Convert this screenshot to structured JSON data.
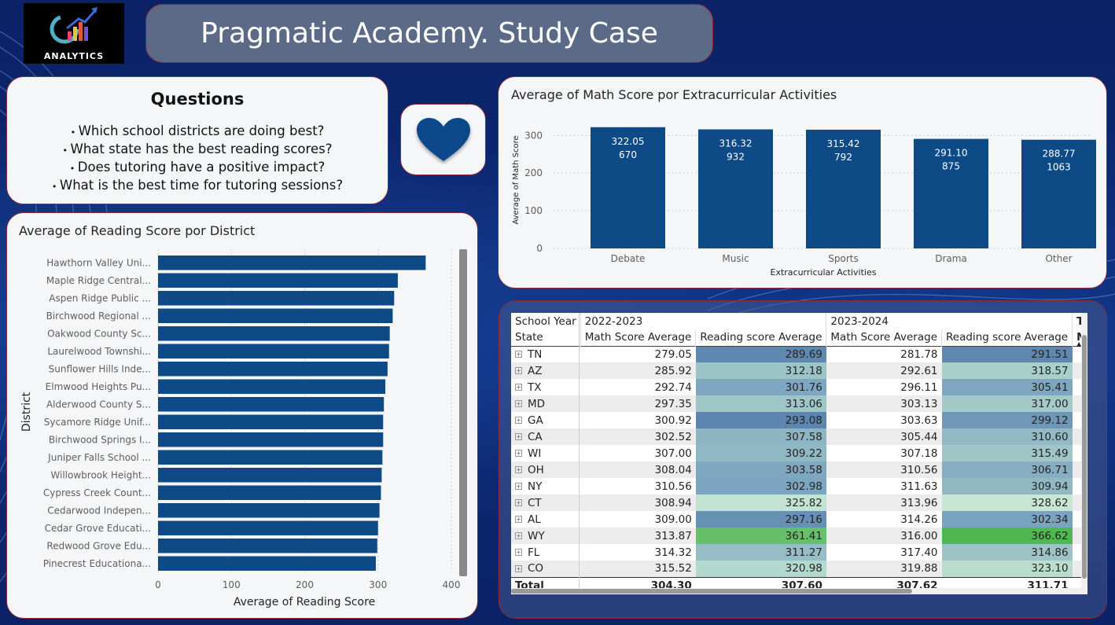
{
  "logo": {
    "text": "ANALYTICS",
    "accent": "#2a7fd4"
  },
  "header": {
    "title": "Pragmatic Academy. Study Case"
  },
  "questions": {
    "title": "Questions",
    "items": [
      "Which school districts are doing best?",
      "What state has the best reading scores?",
      "Does tutoring have a positive impact?",
      "What is the best time for tutoring sessions?"
    ]
  },
  "heart": {
    "icon": "heart-icon",
    "color": "#0f4a8a"
  },
  "chart_data": [
    {
      "type": "bar",
      "title": "Average of Math Score por Extracurricular Activities",
      "xlabel": "Extracurricular Activities",
      "ylabel": "Average of Math Score",
      "categories": [
        "Debate",
        "Music",
        "Sports",
        "Drama",
        "Other"
      ],
      "values": [
        322.05,
        316.32,
        315.42,
        291.1,
        288.77
      ],
      "secondary_labels": [
        "670",
        "932",
        "792",
        "875",
        "1063"
      ],
      "value_labels": [
        "322.05",
        "316.32",
        "315.42",
        "291.10",
        "288.77"
      ],
      "yticks": [
        "0",
        "100",
        "200",
        "300"
      ],
      "ylim": [
        0,
        330
      ],
      "color": "#0e4a86"
    },
    {
      "type": "bar",
      "orientation": "horizontal",
      "title": "Average of Reading Score por District",
      "xlabel": "Average of Reading Score",
      "ylabel": "District",
      "categories": [
        "Hawthorn Valley Uni...",
        "Maple Ridge Central...",
        "Aspen Ridge Public ...",
        "Birchwood Regional ...",
        "Oakwood County Sc...",
        "Laurelwood Townshi...",
        "Sunflower Hills Inde...",
        "Elmwood Heights Pu...",
        "Alderwood County S...",
        "Sycamore Ridge Unif...",
        "Birchwood Springs I...",
        "Juniper Falls School ...",
        "Willowbrook Height...",
        "Cypress Creek Count...",
        "Cedarwood Indepen...",
        "Cedar Grove Educati...",
        "Redwood Grove Edu...",
        "Pinecrest Educationa..."
      ],
      "values": [
        365,
        327,
        322,
        320,
        316,
        315,
        313,
        310,
        308,
        307,
        307,
        306,
        305,
        304,
        302,
        300,
        299,
        297
      ],
      "xticks": [
        "0",
        "100",
        "200",
        "300",
        "400"
      ],
      "xlim": [
        0,
        400
      ],
      "color": "#0e4a86"
    }
  ],
  "table": {
    "header_row1": {
      "label": "School Year",
      "y1": "2022-2023",
      "y2": "2023-2024",
      "total": "Total"
    },
    "header_row2": {
      "state": "State",
      "math1": "Math Score Average",
      "read1": "Reading score Average",
      "math2": "Math Score Average",
      "read2": "Reading score Average",
      "total": "Math"
    },
    "rows": [
      {
        "state": "TN",
        "m1": "279.05",
        "r1": "289.69",
        "m2": "281.78",
        "r2": "291.51",
        "c1": "#5f88b0",
        "c2": "#5f88b0"
      },
      {
        "state": "AZ",
        "m1": "285.92",
        "r1": "312.18",
        "m2": "292.61",
        "r2": "318.57",
        "c1": "#9cc3c6",
        "c2": "#a8cfc9"
      },
      {
        "state": "TX",
        "m1": "292.74",
        "r1": "301.76",
        "m2": "296.11",
        "r2": "305.41",
        "c1": "#7ea6c0",
        "c2": "#7ea6c0"
      },
      {
        "state": "MD",
        "m1": "297.35",
        "r1": "313.06",
        "m2": "303.13",
        "r2": "317.00",
        "c1": "#9fc6c7",
        "c2": "#a3c9c8"
      },
      {
        "state": "GA",
        "m1": "300.92",
        "r1": "293.08",
        "m2": "303.63",
        "r2": "299.12",
        "c1": "#5c86b0",
        "c2": "#6e97b8"
      },
      {
        "state": "CA",
        "m1": "302.52",
        "r1": "307.58",
        "m2": "305.44",
        "r2": "310.60",
        "c1": "#8db4c3",
        "c2": "#93b9c4"
      },
      {
        "state": "WI",
        "m1": "307.00",
        "r1": "309.22",
        "m2": "307.18",
        "r2": "315.49",
        "c1": "#90b7c4",
        "c2": "#a0c5c7"
      },
      {
        "state": "OH",
        "m1": "308.04",
        "r1": "303.58",
        "m2": "310.56",
        "r2": "306.71",
        "c1": "#7fa7c0",
        "c2": "#86adc1"
      },
      {
        "state": "NY",
        "m1": "310.56",
        "r1": "302.98",
        "m2": "311.63",
        "r2": "309.94",
        "c1": "#7ca5bf",
        "c2": "#92b8c4"
      },
      {
        "state": "CT",
        "m1": "308.94",
        "r1": "325.82",
        "m2": "313.96",
        "r2": "328.62",
        "c1": "#c2e2d2",
        "c2": "#c8e6d3"
      },
      {
        "state": "AL",
        "m1": "309.00",
        "r1": "297.16",
        "m2": "314.26",
        "r2": "302.34",
        "c1": "#6790b6",
        "c2": "#7aa3bf"
      },
      {
        "state": "WY",
        "m1": "313.87",
        "r1": "361.41",
        "m2": "316.00",
        "r2": "366.62",
        "c1": "#66c06a",
        "c2": "#4fb850"
      },
      {
        "state": "FL",
        "m1": "314.32",
        "r1": "311.27",
        "m2": "317.40",
        "r2": "314.86",
        "c1": "#96bdc5",
        "c2": "#9ec3c6"
      },
      {
        "state": "CO",
        "m1": "315.52",
        "r1": "320.98",
        "m2": "319.88",
        "r2": "323.10",
        "c1": "#b3d8cd",
        "c2": "#bbddd0"
      }
    ],
    "total": {
      "label": "Total",
      "m1": "304.30",
      "r1": "307.60",
      "m2": "307.62",
      "r2": "311.71"
    }
  }
}
